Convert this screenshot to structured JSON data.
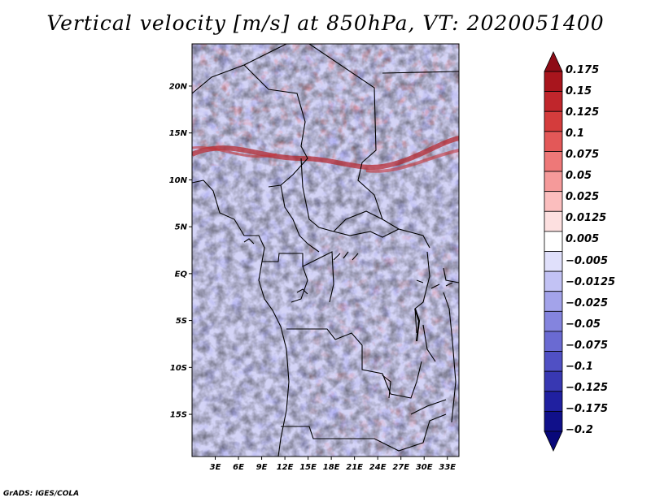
{
  "title": "Vertical velocity [m/s] at 850hPa, VT: 2020051400",
  "credit": "GrADS: IGES/COLA",
  "map": {
    "lat_ticks": [
      "20N",
      "15N",
      "10N",
      "5N",
      "EQ",
      "5S",
      "10S",
      "15S"
    ],
    "lon_ticks": [
      "3E",
      "6E",
      "9E",
      "12E",
      "15E",
      "18E",
      "21E",
      "24E",
      "27E",
      "30E",
      "33E"
    ],
    "lat_values": [
      20,
      15,
      10,
      5,
      0,
      -5,
      -10,
      -15
    ],
    "lon_values": [
      3,
      6,
      9,
      12,
      15,
      18,
      21,
      24,
      27,
      30,
      33
    ],
    "lon_range": [
      0,
      34.5
    ],
    "lat_range": [
      -19.5,
      24.5
    ]
  },
  "colorbar": {
    "levels": [
      "0.175",
      "0.15",
      "0.125",
      "0.1",
      "0.075",
      "0.05",
      "0.025",
      "0.0125",
      "0.005",
      "−0.005",
      "−0.0125",
      "−0.025",
      "−0.05",
      "−0.075",
      "−0.1",
      "−0.125",
      "−0.175",
      "−0.2"
    ],
    "colors": [
      "#a8151d",
      "#c0262c",
      "#d43c3c",
      "#e35858",
      "#ee7878",
      "#f59a9a",
      "#fbbebe",
      "#fde0e0",
      "#ffffff",
      "#e0e0fb",
      "#c2c2f4",
      "#a3a3ea",
      "#8484de",
      "#6a6ad2",
      "#5050c4",
      "#3838b2",
      "#2020a0",
      "#10108a"
    ],
    "top_arrow_color": "#8e0c16",
    "bottom_arrow_color": "#08087a"
  }
}
